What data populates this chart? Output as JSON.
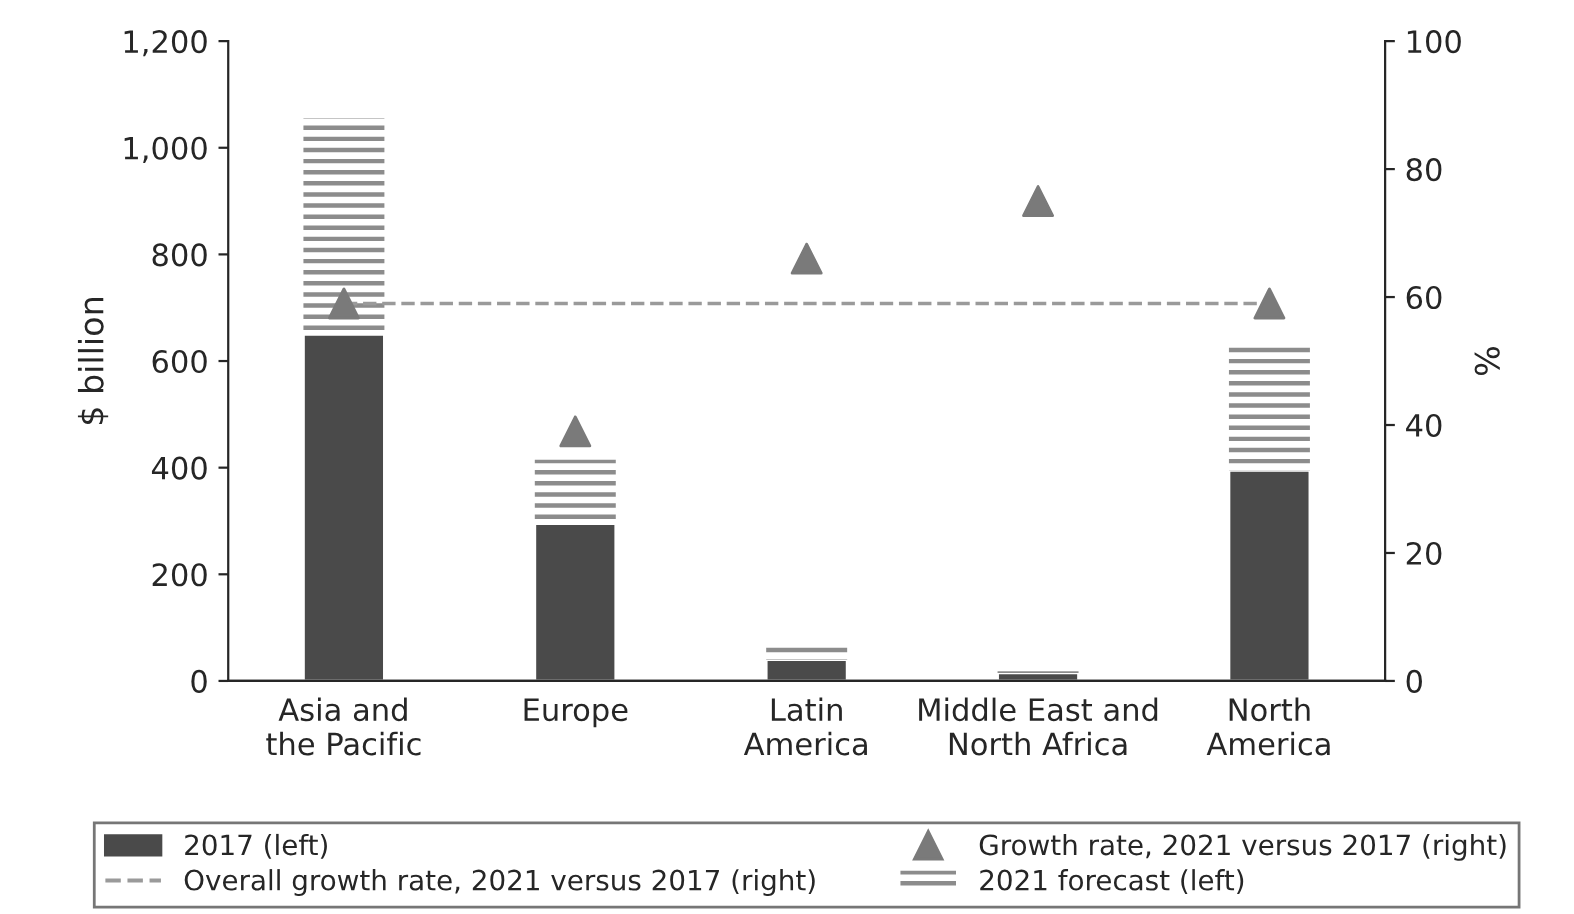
{
  "chart_data": {
    "type": "bar",
    "stacked": true,
    "categories": [
      "Asia and\nthe Pacific",
      "Europe",
      "Latin\nAmerica",
      "Middle East and\nNorth Africa",
      "North\nAmerica"
    ],
    "ylabel": "$ billion",
    "y2label": "%",
    "ylim": [
      0,
      1200
    ],
    "yticks": [
      0,
      {
        "value": 200,
        "label": "200"
      },
      {
        "value": 400,
        "label": "400"
      },
      {
        "value": 600,
        "label": "600"
      },
      {
        "value": 800,
        "label": "800"
      },
      {
        "value": 1000,
        "label": "1,000"
      },
      {
        "value": 1200,
        "label": "1,200"
      }
    ],
    "y2lim": [
      0,
      100
    ],
    "y2ticks": [
      0,
      20,
      40,
      60,
      80,
      100
    ],
    "series": [
      {
        "name": "2017 (left)",
        "color": "#4a4a4a",
        "values": [
          650,
          295,
          40,
          15,
          395
        ]
      },
      {
        "name": "2021 forecast (left)",
        "color": "#8c8c8c",
        "values": [
          405,
          120,
          25,
          3,
          235
        ]
      },
      {
        "name": "Growth rate, 2021 versus 2017 (right)",
        "type": "scatter",
        "axis": "y2",
        "marker": "triangle",
        "color": "#7a7a7a",
        "values": [
          59,
          39,
          66,
          75,
          59
        ]
      }
    ],
    "ref_lines": [
      {
        "axis": "y2",
        "value": 59,
        "label": "Overall growth rate, 2021 versus 2017 (right)",
        "color": "#9a9a9a",
        "line_style": "dashed"
      }
    ],
    "legend": "bottom",
    "grid": false
  }
}
